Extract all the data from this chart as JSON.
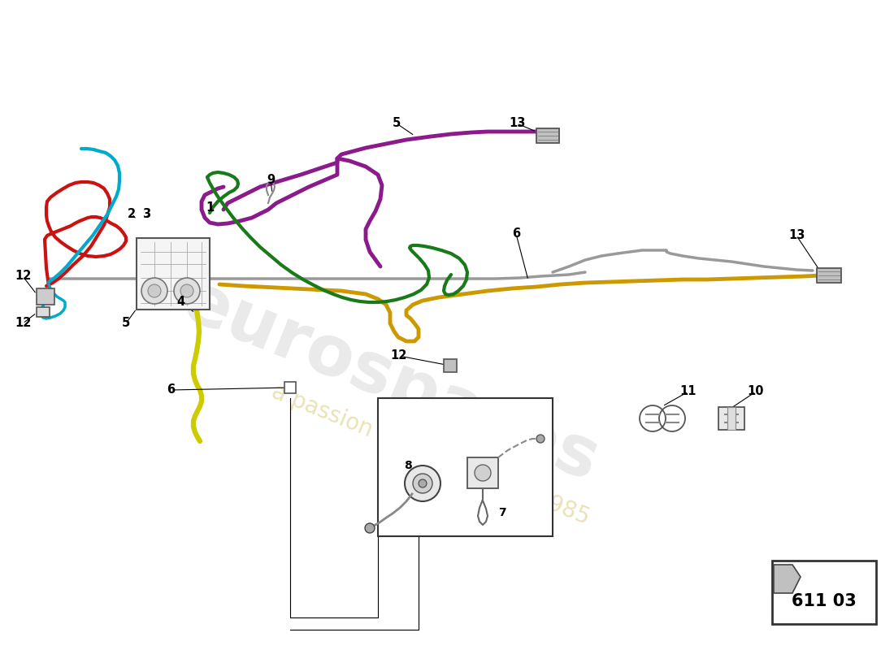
{
  "background_color": "#ffffff",
  "part_number": "611 03",
  "colors": {
    "purple": "#8B1A8B",
    "gray": "#999999",
    "gold": "#CC9900",
    "red": "#CC1111",
    "cyan": "#00AACC",
    "yellow": "#CCCC00",
    "green": "#1A7A1A",
    "black": "#222222"
  },
  "lw": 3.0
}
